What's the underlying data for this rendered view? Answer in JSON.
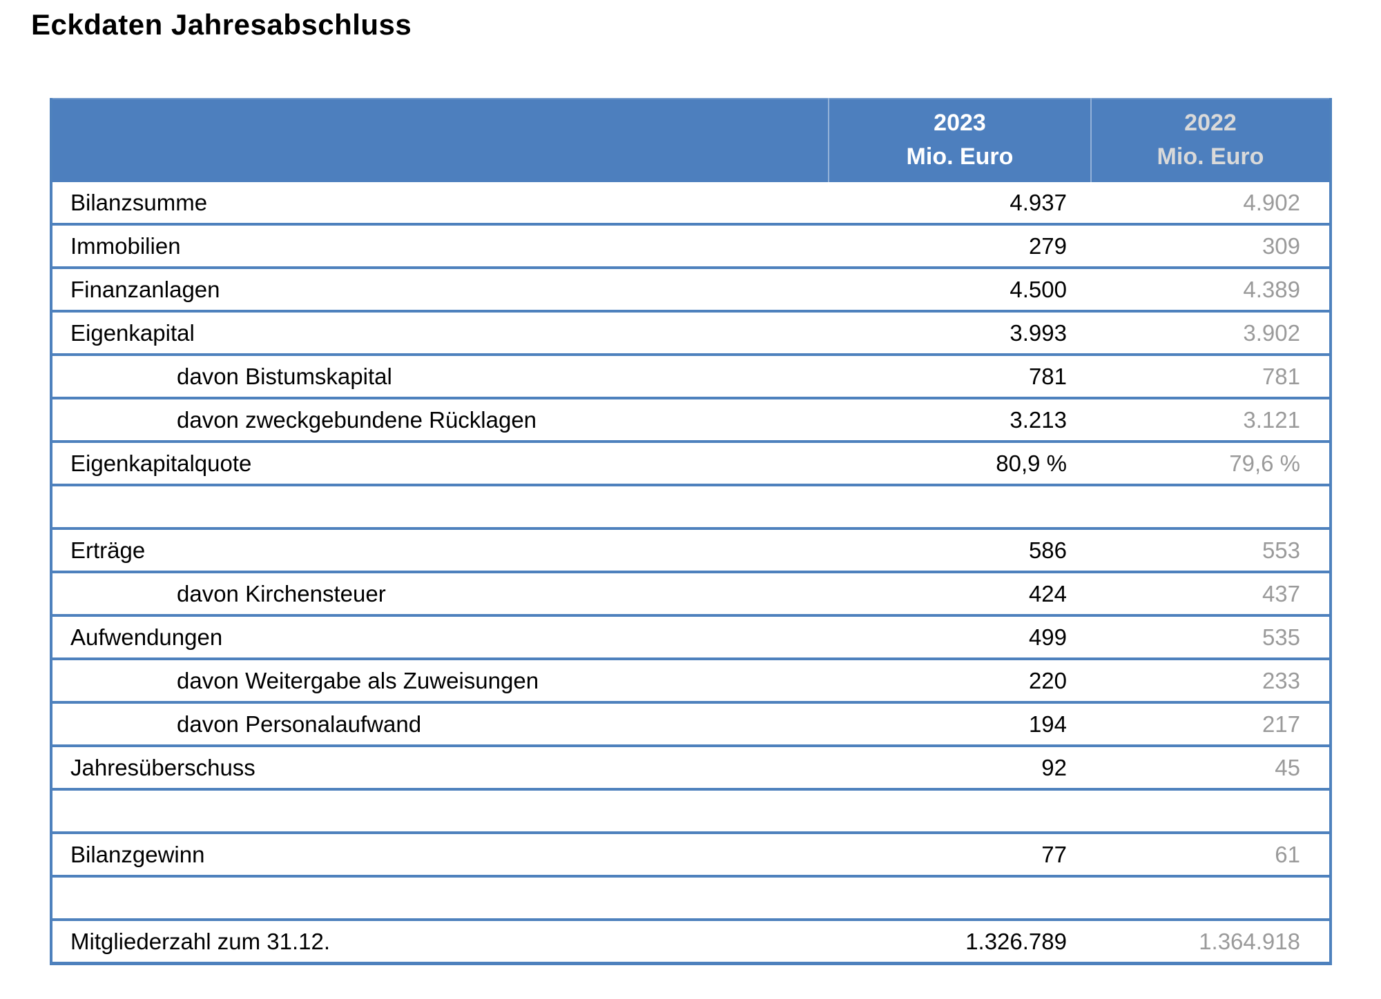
{
  "title": "Eckdaten Jahresabschluss",
  "colors": {
    "header_background": "#4D7FBE",
    "grid_border": "#4E81BD",
    "current_year_text": "#000000",
    "previous_year_text": "#9A9A9A",
    "header_2023_text": "#FFFFFF",
    "header_2022_text": "#D9D9D9"
  },
  "table": {
    "columns": [
      {
        "year": "2023",
        "unit": "Mio. Euro"
      },
      {
        "year": "2022",
        "unit": "Mio. Euro"
      }
    ],
    "rows": [
      {
        "label": "Bilanzsumme",
        "v2023": "4.937",
        "v2022": "4.902",
        "indent": false,
        "empty": false
      },
      {
        "label": "Immobilien",
        "v2023": "279",
        "v2022": "309",
        "indent": false,
        "empty": false
      },
      {
        "label": "Finanzanlagen",
        "v2023": "4.500",
        "v2022": "4.389",
        "indent": false,
        "empty": false
      },
      {
        "label": "Eigenkapital",
        "v2023": "3.993",
        "v2022": "3.902",
        "indent": false,
        "empty": false
      },
      {
        "label": "davon Bistumskapital",
        "v2023": "781",
        "v2022": "781",
        "indent": true,
        "empty": false
      },
      {
        "label": "davon zweckgebundene Rücklagen",
        "v2023": "3.213",
        "v2022": "3.121",
        "indent": true,
        "empty": false
      },
      {
        "label": "Eigenkapitalquote",
        "v2023": "80,9 %",
        "v2022": "79,6 %",
        "indent": false,
        "empty": false
      },
      {
        "label": "",
        "v2023": "",
        "v2022": "",
        "indent": false,
        "empty": true
      },
      {
        "label": "Erträge",
        "v2023": "586",
        "v2022": "553",
        "indent": false,
        "empty": false
      },
      {
        "label": "davon Kirchensteuer",
        "v2023": "424",
        "v2022": "437",
        "indent": true,
        "empty": false
      },
      {
        "label": "Aufwendungen",
        "v2023": "499",
        "v2022": "535",
        "indent": false,
        "empty": false
      },
      {
        "label": "davon Weitergabe als Zuweisungen",
        "v2023": "220",
        "v2022": "233",
        "indent": true,
        "empty": false
      },
      {
        "label": "davon Personalaufwand",
        "v2023": "194",
        "v2022": "217",
        "indent": true,
        "empty": false
      },
      {
        "label": "Jahresüberschuss",
        "v2023": "92",
        "v2022": "45",
        "indent": false,
        "empty": false
      },
      {
        "label": "",
        "v2023": "",
        "v2022": "",
        "indent": false,
        "empty": true
      },
      {
        "label": "Bilanzgewinn",
        "v2023": "77",
        "v2022": "61",
        "indent": false,
        "empty": false
      },
      {
        "label": "",
        "v2023": "",
        "v2022": "",
        "indent": false,
        "empty": true
      },
      {
        "label": "Mitgliederzahl zum 31.12.",
        "v2023": "1.326.789",
        "v2022": "1.364.918",
        "indent": false,
        "empty": false
      }
    ]
  }
}
